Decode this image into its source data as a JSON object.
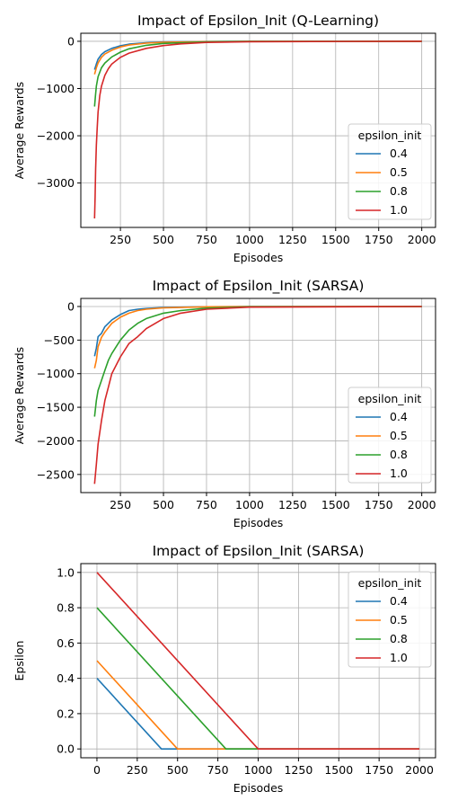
{
  "colors": {
    "series": [
      "#1f77b4",
      "#ff7f0e",
      "#2ca02c",
      "#d62728"
    ],
    "grid": "#b0b0b0",
    "axes": "#000000"
  },
  "chart_data": [
    {
      "type": "line",
      "title": "Impact of Epsilon_Init (Q-Learning)",
      "xlabel": "Episodes",
      "ylabel": "Average Rewards",
      "xlim": [
        20,
        2080
      ],
      "ylim": [
        -3940,
        170
      ],
      "xticks": [
        250,
        500,
        750,
        1000,
        1250,
        1500,
        1750,
        2000
      ],
      "yticks": [
        -3000,
        -2000,
        -1000,
        0
      ],
      "grid": true,
      "legend": {
        "title": "epsilon_init",
        "placement": "center-right"
      },
      "series": [
        {
          "name": "0.4",
          "x": [
            100,
            110,
            120,
            140,
            160,
            200,
            250,
            300,
            400,
            500,
            750,
            1000,
            2000
          ],
          "y": [
            -600,
            -480,
            -380,
            -280,
            -220,
            -150,
            -95,
            -60,
            -30,
            -15,
            -5,
            -2,
            0
          ]
        },
        {
          "name": "0.5",
          "x": [
            100,
            110,
            120,
            140,
            160,
            200,
            250,
            300,
            400,
            500,
            750,
            1000,
            2000
          ],
          "y": [
            -700,
            -560,
            -460,
            -340,
            -270,
            -190,
            -120,
            -80,
            -40,
            -20,
            -7,
            -3,
            0
          ]
        },
        {
          "name": "0.8",
          "x": [
            100,
            105,
            110,
            120,
            140,
            160,
            200,
            250,
            300,
            400,
            500,
            750,
            1000,
            2000
          ],
          "y": [
            -1380,
            -1150,
            -950,
            -750,
            -560,
            -460,
            -330,
            -230,
            -160,
            -85,
            -45,
            -12,
            -4,
            0
          ]
        },
        {
          "name": "1.0",
          "x": [
            100,
            103,
            106,
            110,
            115,
            120,
            130,
            140,
            160,
            180,
            200,
            250,
            300,
            400,
            500,
            600,
            750,
            1000,
            2000
          ],
          "y": [
            -3750,
            -3300,
            -2700,
            -2200,
            -1850,
            -1500,
            -1150,
            -950,
            -720,
            -580,
            -480,
            -340,
            -250,
            -150,
            -90,
            -55,
            -25,
            -8,
            0
          ]
        }
      ]
    },
    {
      "type": "line",
      "title": "Impact of Epsilon_Init (SARSA)",
      "xlabel": "Episodes",
      "ylabel": "Average Rewards",
      "xlim": [
        20,
        2080
      ],
      "ylim": [
        -2770,
        120
      ],
      "xticks": [
        250,
        500,
        750,
        1000,
        1250,
        1500,
        1750,
        2000
      ],
      "yticks": [
        -2500,
        -2000,
        -1500,
        -1000,
        -500,
        0
      ],
      "grid": true,
      "legend": {
        "title": "epsilon_init",
        "placement": "lower-right"
      },
      "series": [
        {
          "name": "0.4",
          "x": [
            100,
            110,
            120,
            140,
            160,
            200,
            250,
            300,
            350,
            400,
            500,
            750,
            1000,
            2000
          ],
          "y": [
            -740,
            -620,
            -450,
            -400,
            -300,
            -200,
            -120,
            -60,
            -40,
            -30,
            -15,
            -5,
            -2,
            0
          ]
        },
        {
          "name": "0.5",
          "x": [
            100,
            110,
            120,
            140,
            160,
            200,
            250,
            300,
            350,
            400,
            500,
            750,
            1000,
            2000
          ],
          "y": [
            -920,
            -800,
            -600,
            -460,
            -380,
            -250,
            -160,
            -100,
            -60,
            -40,
            -20,
            -5,
            -2,
            0
          ]
        },
        {
          "name": "0.8",
          "x": [
            100,
            110,
            120,
            140,
            160,
            180,
            200,
            250,
            300,
            350,
            400,
            500,
            600,
            750,
            1000,
            2000
          ],
          "y": [
            -1640,
            -1400,
            -1250,
            -1100,
            -950,
            -800,
            -700,
            -500,
            -350,
            -250,
            -180,
            -100,
            -60,
            -25,
            -5,
            0
          ]
        },
        {
          "name": "1.0",
          "x": [
            100,
            110,
            120,
            140,
            160,
            180,
            200,
            250,
            300,
            350,
            400,
            500,
            600,
            750,
            1000,
            2000
          ],
          "y": [
            -2640,
            -2350,
            -2050,
            -1700,
            -1400,
            -1200,
            -1000,
            -750,
            -550,
            -450,
            -330,
            -180,
            -100,
            -40,
            -10,
            0
          ]
        }
      ]
    },
    {
      "type": "line",
      "title": "Impact of Epsilon_Init (SARSA)",
      "xlabel": "Episodes",
      "ylabel": "Epsilon",
      "xlim": [
        -100,
        2100
      ],
      "ylim": [
        -0.05,
        1.05
      ],
      "xticks": [
        0,
        250,
        500,
        750,
        1000,
        1250,
        1500,
        1750,
        2000
      ],
      "yticks": [
        0.0,
        0.2,
        0.4,
        0.6,
        0.8,
        1.0
      ],
      "ytick_labels": [
        "0.0",
        "0.2",
        "0.4",
        "0.6",
        "0.8",
        "1.0"
      ],
      "grid": true,
      "legend": {
        "title": "epsilon_init",
        "placement": "upper-right"
      },
      "series": [
        {
          "name": "0.4",
          "x": [
            0,
            400,
            2000
          ],
          "y": [
            0.4,
            0.0,
            0.0
          ]
        },
        {
          "name": "0.5",
          "x": [
            0,
            500,
            2000
          ],
          "y": [
            0.5,
            0.0,
            0.0
          ]
        },
        {
          "name": "0.8",
          "x": [
            0,
            800,
            2000
          ],
          "y": [
            0.8,
            0.0,
            0.0
          ]
        },
        {
          "name": "1.0",
          "x": [
            0,
            1000,
            2000
          ],
          "y": [
            1.0,
            0.0,
            0.0
          ]
        }
      ]
    }
  ]
}
